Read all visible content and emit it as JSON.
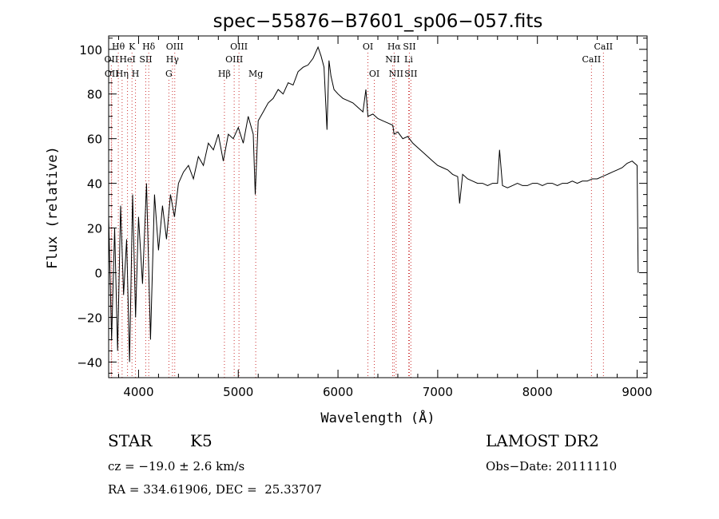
{
  "chart_data": {
    "type": "line",
    "title": "spec−55876−B7601_sp06−057.fits",
    "xlabel": "Wavelength (Å)",
    "ylabel": "Flux (relative)",
    "xlim": [
      3700,
      9100
    ],
    "ylim": [
      -47,
      106
    ],
    "x_ticks": [
      4000,
      5000,
      6000,
      7000,
      8000,
      9000
    ],
    "x_tick_labels": [
      "4000",
      "5000",
      "6000",
      "7000",
      "8000",
      "9000"
    ],
    "y_ticks": [
      -40,
      -20,
      0,
      20,
      40,
      60,
      80,
      100
    ],
    "y_tick_labels": [
      "−40",
      "−20",
      "0",
      "20",
      "40",
      "60",
      "80",
      "100"
    ],
    "grid": false,
    "line_color": "#000000",
    "marker_line_color": "#cc3333",
    "series": [
      {
        "x": [
          3700,
          3730,
          3760,
          3790,
          3820,
          3850,
          3880,
          3910,
          3940,
          3970,
          4000,
          4040,
          4080,
          4120,
          4160,
          4200,
          4240,
          4280,
          4320,
          4360,
          4400,
          4450,
          4500,
          4550,
          4600,
          4650,
          4700,
          4750,
          4800,
          4850,
          4900,
          4950,
          5000,
          5050,
          5100,
          5150,
          5170,
          5200,
          5250,
          5300,
          5350,
          5400,
          5450,
          5500,
          5550,
          5600,
          5650,
          5700,
          5750,
          5800,
          5830,
          5860,
          5890,
          5910,
          5930,
          5960,
          6000,
          6050,
          6100,
          6150,
          6200,
          6250,
          6280,
          6300,
          6350,
          6400,
          6450,
          6500,
          6550,
          6563,
          6600,
          6650,
          6700,
          6750,
          6800,
          6850,
          6900,
          6950,
          7000,
          7050,
          7100,
          7150,
          7200,
          7220,
          7250,
          7300,
          7350,
          7400,
          7450,
          7500,
          7550,
          7600,
          7620,
          7650,
          7700,
          7750,
          7800,
          7850,
          7900,
          7950,
          8000,
          8050,
          8100,
          8150,
          8200,
          8250,
          8300,
          8350,
          8400,
          8450,
          8500,
          8550,
          8600,
          8650,
          8700,
          8750,
          8800,
          8850,
          8900,
          8950,
          9000,
          9010
        ],
        "y": [
          25,
          -30,
          20,
          -35,
          30,
          -10,
          15,
          -40,
          35,
          -20,
          25,
          -5,
          40,
          -30,
          35,
          10,
          30,
          15,
          35,
          25,
          40,
          45,
          48,
          42,
          52,
          48,
          58,
          55,
          62,
          50,
          62,
          60,
          65,
          58,
          70,
          62,
          35,
          68,
          72,
          76,
          78,
          82,
          80,
          85,
          84,
          90,
          92,
          93,
          96,
          101,
          97,
          92,
          64,
          95,
          88,
          82,
          80,
          78,
          77,
          76,
          74,
          72,
          82,
          70,
          71,
          69,
          68,
          67,
          66,
          62,
          63,
          60,
          61,
          58,
          56,
          54,
          52,
          50,
          48,
          47,
          46,
          44,
          43,
          31,
          44,
          42,
          41,
          40,
          40,
          39,
          40,
          40,
          55,
          39,
          38,
          39,
          40,
          39,
          39,
          40,
          40,
          39,
          40,
          40,
          39,
          40,
          40,
          41,
          40,
          41,
          41,
          42,
          42,
          43,
          44,
          45,
          46,
          47,
          49,
          50,
          48,
          0
        ]
      }
    ],
    "line_markers": [
      {
        "label": "Hθ",
        "x": 3797,
        "row": 0
      },
      {
        "label": "K",
        "x": 3934,
        "row": 0
      },
      {
        "label": "Hδ",
        "x": 4102,
        "row": 0
      },
      {
        "label": "OIII",
        "x": 4363,
        "row": 0
      },
      {
        "label": "OIII",
        "x": 5007,
        "row": 0
      },
      {
        "label": "OI",
        "x": 6300,
        "row": 0
      },
      {
        "label": "Hα",
        "x": 6563,
        "row": 0
      },
      {
        "label": "SII",
        "x": 6716,
        "row": 0
      },
      {
        "label": "CaII",
        "x": 8662,
        "row": 0
      },
      {
        "label": "OII",
        "x": 3727,
        "row": 1
      },
      {
        "label": "HeI",
        "x": 3889,
        "row": 1
      },
      {
        "label": "SII",
        "x": 4072,
        "row": 1
      },
      {
        "label": "Hγ",
        "x": 4340,
        "row": 1
      },
      {
        "label": "OIII",
        "x": 4959,
        "row": 1
      },
      {
        "label": "NII",
        "x": 6548,
        "row": 1
      },
      {
        "label": "Li",
        "x": 6708,
        "row": 1
      },
      {
        "label": "CaII",
        "x": 8542,
        "row": 1
      },
      {
        "label": "OII",
        "x": 3730,
        "row": 2
      },
      {
        "label": "Hη",
        "x": 3835,
        "row": 2
      },
      {
        "label": "H",
        "x": 3969,
        "row": 2
      },
      {
        "label": "G",
        "x": 4304,
        "row": 2
      },
      {
        "label": "Hβ",
        "x": 4861,
        "row": 2
      },
      {
        "label": "Mg",
        "x": 5175,
        "row": 2
      },
      {
        "label": "OI",
        "x": 6364,
        "row": 2
      },
      {
        "label": "NII",
        "x": 6583,
        "row": 2
      },
      {
        "label": "SII",
        "x": 6731,
        "row": 2
      }
    ]
  },
  "info": {
    "object_class": "STAR",
    "subclass": "K5",
    "survey": "LAMOST DR2",
    "redshift": "cz = −19.0 ± 2.6 km/s",
    "obs_date": "Obs−Date: 20111110",
    "coords": "RA = 334.61906, DEC =  25.33707"
  }
}
